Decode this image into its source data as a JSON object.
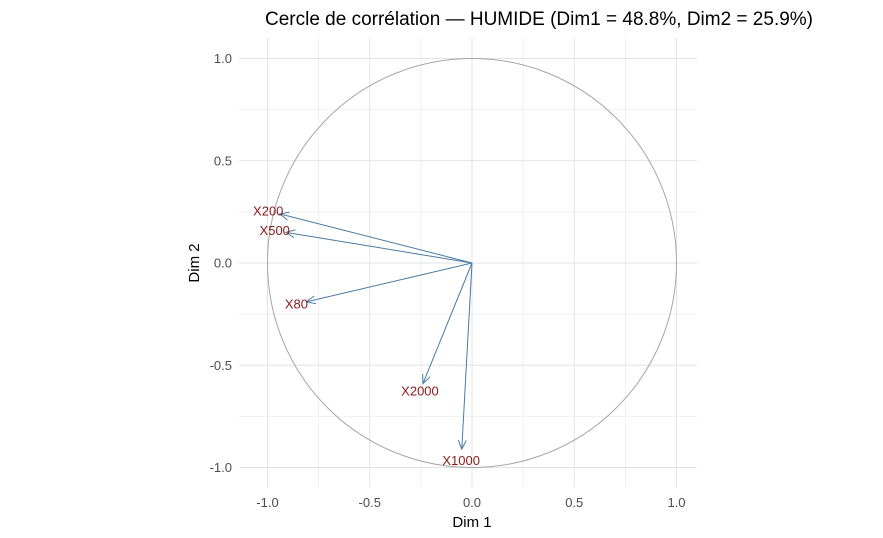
{
  "chart_data": {
    "type": "scatter",
    "subtype": "correlation-circle",
    "title": "Cercle de corrélation — HUMIDE (Dim1 = 48.8%, Dim2 = 25.9%)",
    "xlabel": "Dim 1",
    "ylabel": "Dim 2",
    "xlim": [
      -1.1,
      1.1
    ],
    "ylim": [
      -1.1,
      1.05
    ],
    "x_ticks": [
      -1.0,
      -0.5,
      0.0,
      0.5,
      1.0
    ],
    "x_tick_labels": [
      "-1.0",
      "-0.5",
      "0.0",
      "0.5",
      "1.0"
    ],
    "y_ticks": [
      1.0,
      0.5,
      0.0,
      -0.5,
      -1.0
    ],
    "y_tick_labels": [
      "1.0",
      "0.5",
      "0.0",
      "-0.5",
      "-1.0"
    ],
    "grid": true,
    "unit_circle": true,
    "vectors": [
      {
        "name": "X200",
        "x": -0.94,
        "y": 0.24
      },
      {
        "name": "X500",
        "x": -0.91,
        "y": 0.15
      },
      {
        "name": "X80",
        "x": -0.81,
        "y": -0.19
      },
      {
        "name": "X2000",
        "x": -0.24,
        "y": -0.59
      },
      {
        "name": "X1000",
        "x": -0.05,
        "y": -0.91
      }
    ],
    "colors": {
      "arrow": "#4a7aa6",
      "label": "#8b1a1a",
      "circle": "#a6a6a6",
      "grid_major": "#e3e3e3",
      "grid_minor": "#f1f1f1"
    }
  }
}
